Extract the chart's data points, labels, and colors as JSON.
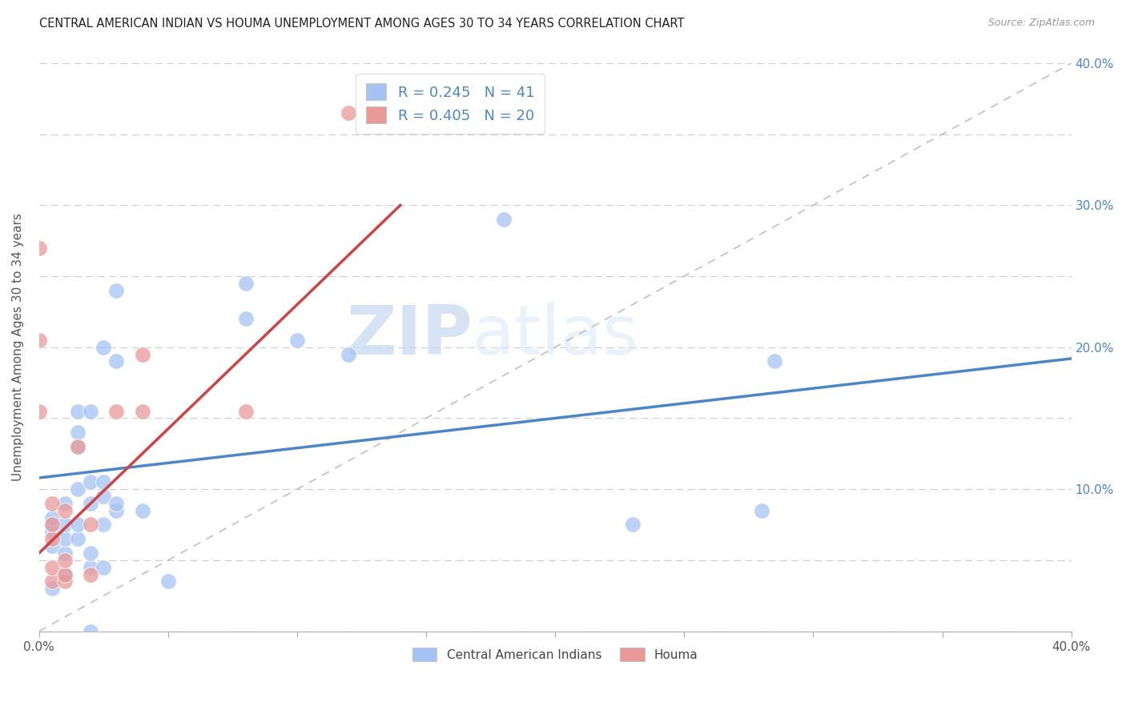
{
  "title": "CENTRAL AMERICAN INDIAN VS HOUMA UNEMPLOYMENT AMONG AGES 30 TO 34 YEARS CORRELATION CHART",
  "source": "Source: ZipAtlas.com",
  "ylabel": "Unemployment Among Ages 30 to 34 years",
  "xlim": [
    0,
    0.4
  ],
  "ylim": [
    0,
    0.4
  ],
  "watermark_zip": "ZIP",
  "watermark_atlas": "atlas",
  "legend_r1": "R = 0.245",
  "legend_n1": "N = 41",
  "legend_r2": "R = 0.405",
  "legend_n2": "N = 20",
  "color_blue": "#a4c2f4",
  "color_pink": "#ea9999",
  "color_blue_line": "#4a86c8",
  "color_pink_line": "#cc4444",
  "color_diag": "#c0c0c0",
  "color_right_axis": "#4a86c8",
  "scatter_blue": [
    [
      0.005,
      0.03
    ],
    [
      0.005,
      0.06
    ],
    [
      0.005,
      0.07
    ],
    [
      0.005,
      0.075
    ],
    [
      0.005,
      0.08
    ],
    [
      0.01,
      0.04
    ],
    [
      0.01,
      0.055
    ],
    [
      0.01,
      0.065
    ],
    [
      0.01,
      0.075
    ],
    [
      0.01,
      0.09
    ],
    [
      0.015,
      0.065
    ],
    [
      0.015,
      0.075
    ],
    [
      0.015,
      0.1
    ],
    [
      0.015,
      0.13
    ],
    [
      0.015,
      0.14
    ],
    [
      0.015,
      0.155
    ],
    [
      0.02,
      0.0
    ],
    [
      0.02,
      0.045
    ],
    [
      0.02,
      0.055
    ],
    [
      0.02,
      0.09
    ],
    [
      0.02,
      0.105
    ],
    [
      0.02,
      0.155
    ],
    [
      0.025,
      0.045
    ],
    [
      0.025,
      0.075
    ],
    [
      0.025,
      0.095
    ],
    [
      0.025,
      0.105
    ],
    [
      0.025,
      0.2
    ],
    [
      0.03,
      0.085
    ],
    [
      0.03,
      0.09
    ],
    [
      0.03,
      0.19
    ],
    [
      0.03,
      0.24
    ],
    [
      0.04,
      0.085
    ],
    [
      0.05,
      0.035
    ],
    [
      0.08,
      0.22
    ],
    [
      0.08,
      0.245
    ],
    [
      0.1,
      0.205
    ],
    [
      0.12,
      0.195
    ],
    [
      0.18,
      0.29
    ],
    [
      0.23,
      0.075
    ],
    [
      0.28,
      0.085
    ],
    [
      0.285,
      0.19
    ]
  ],
  "scatter_pink": [
    [
      0.0,
      0.155
    ],
    [
      0.0,
      0.205
    ],
    [
      0.0,
      0.27
    ],
    [
      0.005,
      0.035
    ],
    [
      0.005,
      0.045
    ],
    [
      0.005,
      0.065
    ],
    [
      0.005,
      0.075
    ],
    [
      0.005,
      0.09
    ],
    [
      0.01,
      0.035
    ],
    [
      0.01,
      0.04
    ],
    [
      0.01,
      0.05
    ],
    [
      0.01,
      0.085
    ],
    [
      0.015,
      0.13
    ],
    [
      0.02,
      0.04
    ],
    [
      0.02,
      0.075
    ],
    [
      0.03,
      0.155
    ],
    [
      0.04,
      0.155
    ],
    [
      0.04,
      0.195
    ],
    [
      0.08,
      0.155
    ],
    [
      0.12,
      0.365
    ]
  ],
  "blue_line_x": [
    0.0,
    0.4
  ],
  "blue_line_y": [
    0.108,
    0.192
  ],
  "pink_line_x": [
    0.0,
    0.14
  ],
  "pink_line_y": [
    0.055,
    0.3
  ],
  "diag_line_x": [
    0.0,
    0.4
  ],
  "diag_line_y": [
    0.0,
    0.4
  ]
}
